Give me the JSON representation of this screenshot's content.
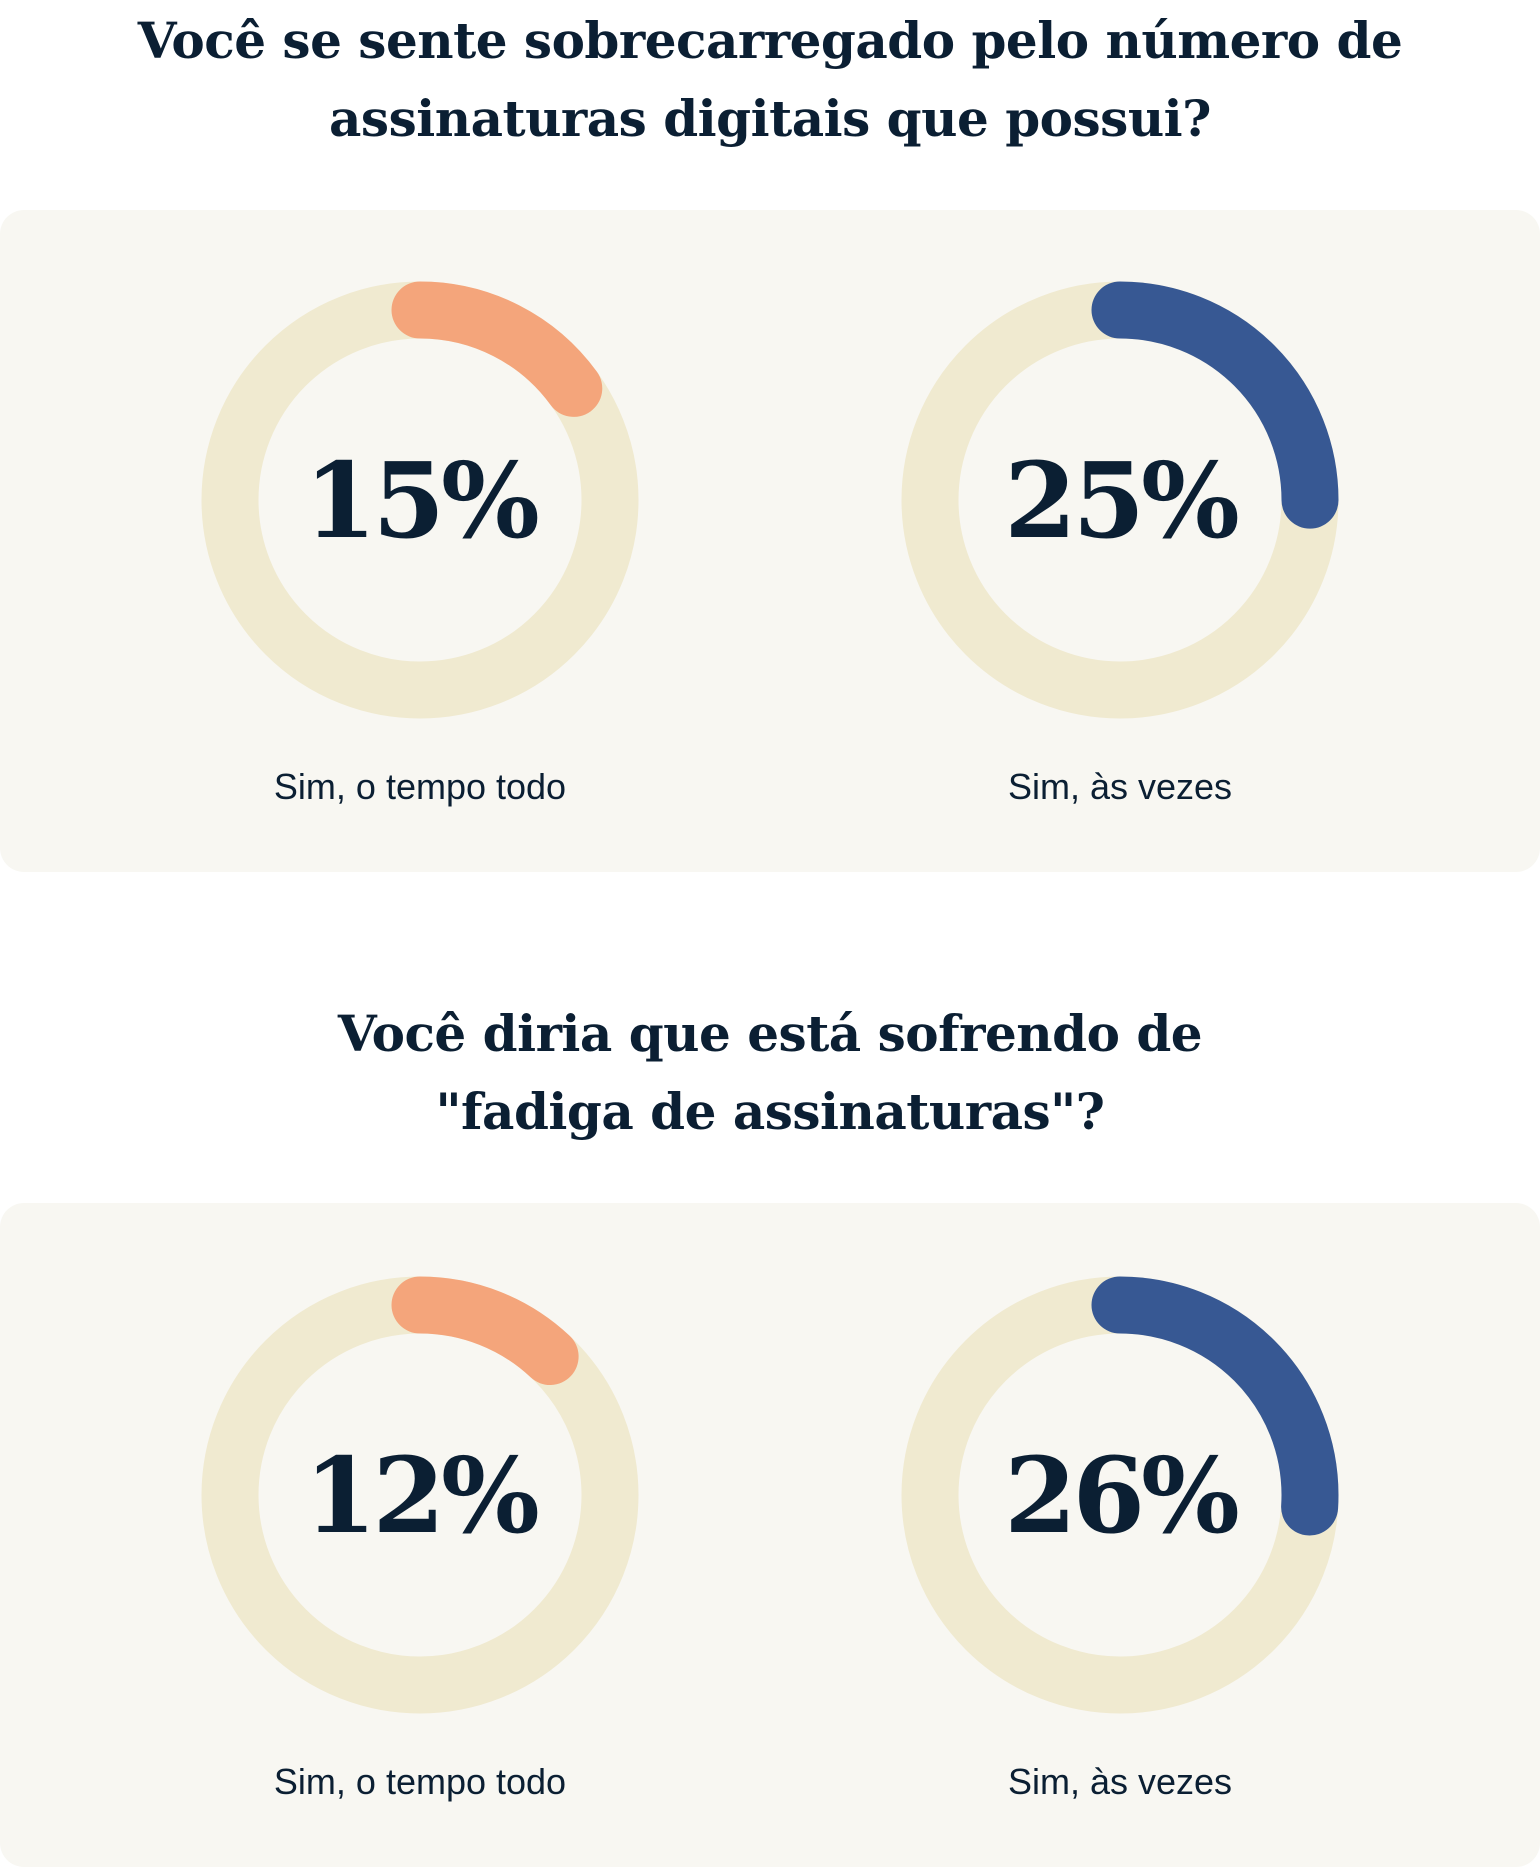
{
  "colors": {
    "highlight_orange": "#F4A57B",
    "highlight_blue": "#375893",
    "track": "#F0EAD0",
    "card": "#F8F7F2",
    "text": "#0B1F33"
  },
  "chart_data": [
    {
      "type": "donut",
      "title": "Você se sente sobrecarregado pelo número de assinaturas digitais que possui?",
      "title_lines": [
        "Você se sente sobrecarregado pelo número de",
        "assinaturas digitais que possui?"
      ],
      "items": [
        {
          "label": "Sim, o tempo todo",
          "value": 15,
          "display": "15%",
          "color": "#F4A57B"
        },
        {
          "label": "Sim, às vezes",
          "value": 25,
          "display": "25%",
          "color": "#375893"
        }
      ]
    },
    {
      "type": "donut",
      "title": "Você diria que está sofrendo de \"fadiga de assinaturas\"?",
      "title_lines": [
        "Você diria que está sofrendo de",
        "\"fadiga de assinaturas\"?"
      ],
      "items": [
        {
          "label": "Sim, o tempo todo",
          "value": 12,
          "display": "12%",
          "color": "#F4A57B"
        },
        {
          "label": "Sim, às vezes",
          "value": 26,
          "display": "26%",
          "color": "#375893"
        }
      ]
    }
  ]
}
